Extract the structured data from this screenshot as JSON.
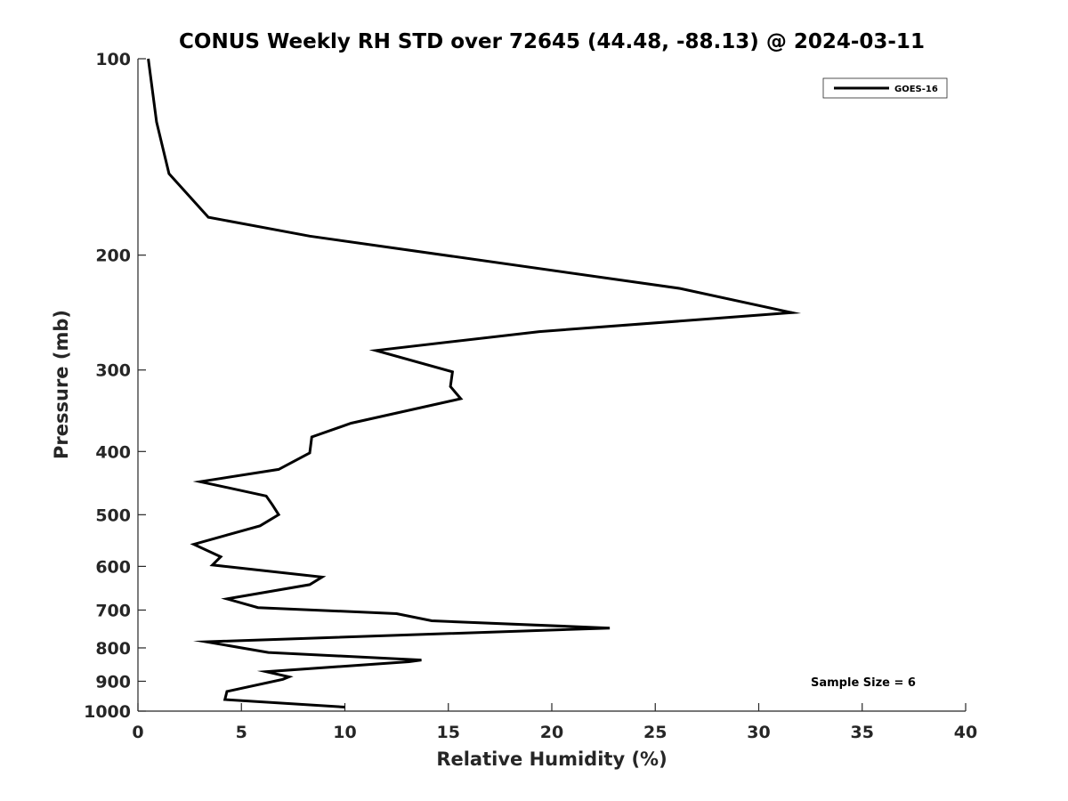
{
  "chart_data": {
    "type": "line",
    "title": "CONUS Weekly RH STD over 72645 (44.48, -88.13) @ 2024-03-11",
    "xlabel": "Relative Humidity (%)",
    "ylabel": "Pressure (mb)",
    "xlim": [
      0,
      40
    ],
    "ylim": [
      100,
      1000
    ],
    "yscale": "log",
    "yaxis_reversed": true,
    "xticks": [
      0,
      5,
      10,
      15,
      20,
      25,
      30,
      35,
      40
    ],
    "xtick_labels": [
      "0",
      "5",
      "10",
      "15",
      "20",
      "25",
      "30",
      "35",
      "40"
    ],
    "yticks": [
      100,
      200,
      300,
      400,
      500,
      600,
      700,
      800,
      900,
      1000
    ],
    "ytick_labels": [
      "100",
      "200",
      "300",
      "400",
      "500",
      "600",
      "700",
      "800",
      "900",
      "1000"
    ],
    "grid": false,
    "legend": {
      "placement": "top-right",
      "entries": [
        "GOES-16"
      ]
    },
    "annotation": "Sample Size = 6",
    "series": [
      {
        "name": "GOES-16",
        "color": "#000000",
        "x": [
          0.5,
          0.9,
          1.5,
          3.4,
          8.3,
          26.2,
          31.6,
          19.4,
          11.5,
          15.2,
          15.1,
          15.6,
          10.3,
          8.4,
          8.3,
          6.8,
          3.0,
          6.2,
          6.5,
          6.8,
          5.9,
          2.7,
          4.0,
          3.6,
          8.9,
          8.3,
          4.3,
          5.8,
          12.5,
          14.2,
          22.8,
          3.3,
          6.3,
          13.7,
          13.1,
          6.2,
          7.3,
          7.0,
          4.3,
          4.2,
          10.0
        ],
        "y": [
          100,
          125,
          150,
          175,
          187,
          225,
          245,
          262,
          280,
          302,
          318,
          332,
          362,
          380,
          402,
          426,
          445,
          468,
          483,
          500,
          520,
          555,
          580,
          597,
          623,
          640,
          673,
          694,
          709,
          727,
          746,
          783,
          813,
          835,
          840,
          870,
          886,
          894,
          933,
          960,
          986
        ]
      }
    ]
  }
}
